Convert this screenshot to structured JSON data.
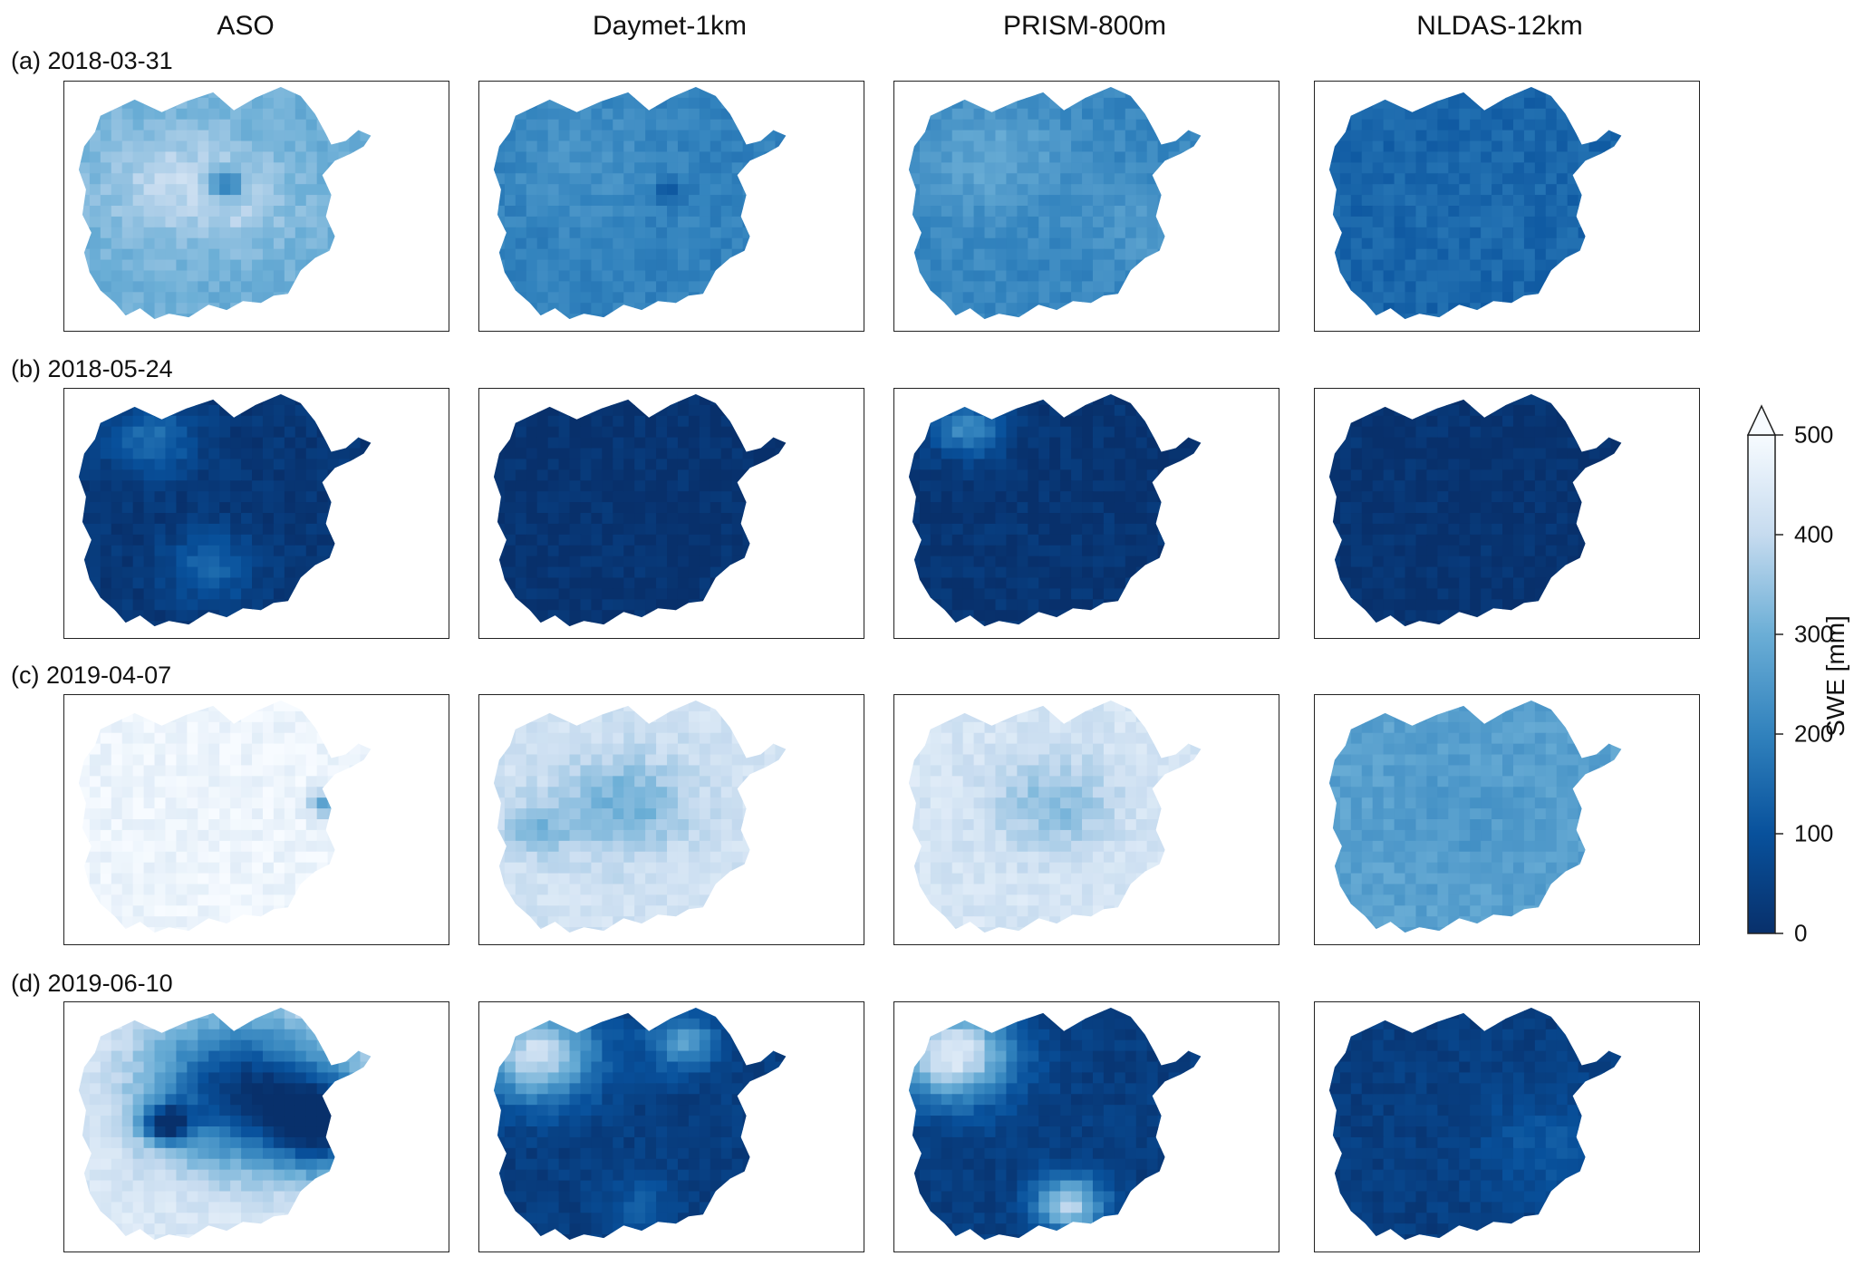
{
  "chart_data": {
    "type": "heatmap",
    "columns": [
      "ASO",
      "Daymet-1km",
      "PRISM-800m",
      "NLDAS-12km"
    ],
    "rows": [
      {
        "label": "(a) 2018-03-31"
      },
      {
        "label": "(b) 2018-05-24"
      },
      {
        "label": "(c) 2019-04-07"
      },
      {
        "label": "(d) 2019-06-10"
      }
    ],
    "panels": [
      [
        {
          "base": 300,
          "blobs": [
            {
              "u": 0.3,
              "v": 0.4,
              "r": 0.25,
              "val": 380
            },
            {
              "u": 0.55,
              "v": 0.5,
              "r": 0.2,
              "val": 360
            },
            {
              "u": 0.5,
              "v": 0.42,
              "r": 0.06,
              "val": 80
            }
          ]
        },
        {
          "base": 200,
          "blobs": [
            {
              "u": 0.3,
              "v": 0.3,
              "r": 0.25,
              "val": 240
            },
            {
              "u": 0.6,
              "v": 0.45,
              "r": 0.05,
              "val": 90
            }
          ]
        },
        {
          "base": 210,
          "blobs": [
            {
              "u": 0.28,
              "v": 0.3,
              "r": 0.25,
              "val": 280
            },
            {
              "u": 0.8,
              "v": 0.6,
              "r": 0.2,
              "val": 250
            }
          ]
        },
        {
          "base": 140,
          "blobs": [
            {
              "u": 0.5,
              "v": 0.5,
              "r": 0.3,
              "val": 150
            }
          ]
        }
      ],
      [
        {
          "base": 20,
          "blobs": [
            {
              "u": 0.25,
              "v": 0.2,
              "r": 0.15,
              "val": 160
            },
            {
              "u": 0.45,
              "v": 0.75,
              "r": 0.15,
              "val": 140
            }
          ]
        },
        {
          "base": 10,
          "blobs": []
        },
        {
          "base": 15,
          "blobs": [
            {
              "u": 0.2,
              "v": 0.15,
              "r": 0.12,
              "val": 220
            }
          ]
        },
        {
          "base": 10,
          "blobs": []
        }
      ],
      [
        {
          "base": 480,
          "blobs": [
            {
              "u": 0.85,
              "v": 0.45,
              "r": 0.06,
              "val": 260
            }
          ]
        },
        {
          "base": 420,
          "blobs": [
            {
              "u": 0.45,
              "v": 0.45,
              "r": 0.2,
              "val": 300
            },
            {
              "u": 0.15,
              "v": 0.55,
              "r": 0.12,
              "val": 330
            }
          ]
        },
        {
          "base": 430,
          "blobs": [
            {
              "u": 0.5,
              "v": 0.45,
              "r": 0.2,
              "val": 330
            }
          ]
        },
        {
          "base": 270,
          "blobs": [
            {
              "u": 0.5,
              "v": 0.5,
              "r": 0.25,
              "val": 250
            }
          ]
        }
      ],
      [
        {
          "base": 440,
          "blobs": [
            {
              "u": 0.55,
              "v": 0.35,
              "r": 0.3,
              "val": 40
            },
            {
              "u": 0.85,
              "v": 0.5,
              "r": 0.2,
              "val": 20
            },
            {
              "u": 0.3,
              "v": 0.5,
              "r": 0.08,
              "val": 60
            }
          ]
        },
        {
          "base": 40,
          "blobs": [
            {
              "u": 0.15,
              "v": 0.2,
              "r": 0.2,
              "val": 420
            },
            {
              "u": 0.65,
              "v": 0.15,
              "r": 0.12,
              "val": 260
            },
            {
              "u": 0.5,
              "v": 0.85,
              "r": 0.12,
              "val": 120
            }
          ]
        },
        {
          "base": 40,
          "blobs": [
            {
              "u": 0.15,
              "v": 0.2,
              "r": 0.2,
              "val": 460
            },
            {
              "u": 0.55,
              "v": 0.85,
              "r": 0.12,
              "val": 380
            }
          ]
        },
        {
          "base": 40,
          "blobs": [
            {
              "u": 0.75,
              "v": 0.6,
              "r": 0.25,
              "val": 110
            }
          ]
        }
      ]
    ],
    "colorbar": {
      "label": "SWE [mm]",
      "ticks": [
        0,
        100,
        200,
        300,
        400,
        500
      ],
      "tick_labels": [
        "0",
        "100",
        "200",
        "300",
        "400",
        "500"
      ],
      "vmin": 0,
      "vmax": 500,
      "extend": "max",
      "cmap": "Blues_r",
      "color_low": "#08306b",
      "color_high": "#f7fbff"
    }
  }
}
